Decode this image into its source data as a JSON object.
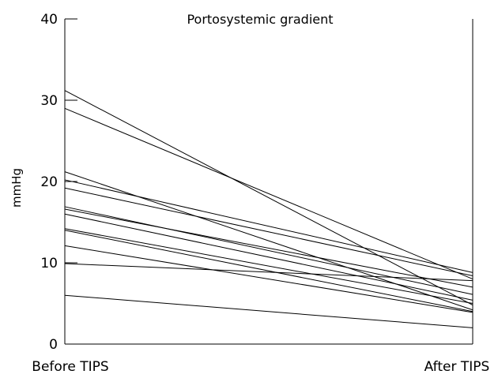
{
  "chart_data": {
    "type": "line",
    "title": "Portosystemic gradient",
    "ylabel": "mmHg",
    "xlabel": "",
    "categories": [
      "Before TIPS",
      "After TIPS"
    ],
    "ylim": [
      0,
      40
    ],
    "yticks": [
      0,
      10,
      20,
      30,
      40
    ],
    "grid": false,
    "legend": "none",
    "line_color": "#000000",
    "series": [
      {
        "values": [
          31.2,
          4.8
        ]
      },
      {
        "values": [
          29.0,
          8.0
        ]
      },
      {
        "values": [
          21.2,
          4.2
        ]
      },
      {
        "values": [
          20.2,
          8.8
        ]
      },
      {
        "values": [
          19.2,
          8.4
        ]
      },
      {
        "values": [
          16.9,
          6.1
        ]
      },
      {
        "values": [
          16.6,
          7.0
        ]
      },
      {
        "values": [
          16.0,
          5.4
        ]
      },
      {
        "values": [
          14.2,
          5.0
        ]
      },
      {
        "values": [
          14.0,
          4.0
        ]
      },
      {
        "values": [
          12.1,
          3.9
        ]
      },
      {
        "values": [
          9.9,
          7.8
        ]
      },
      {
        "values": [
          6.0,
          2.0
        ]
      }
    ]
  }
}
